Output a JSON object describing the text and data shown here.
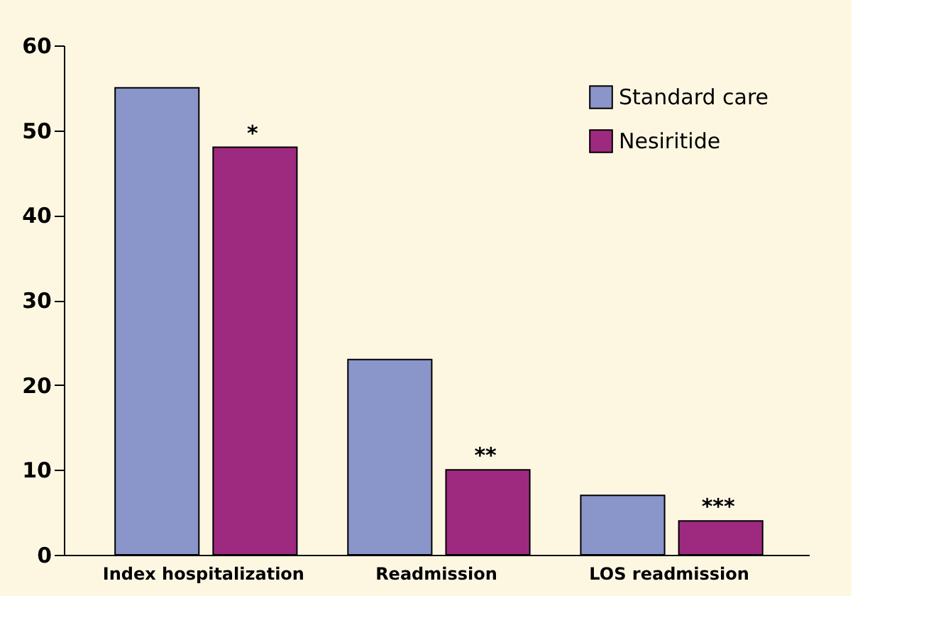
{
  "chart_data": {
    "type": "bar",
    "categories": [
      "Index hospitalization",
      "Readmission",
      "LOS readmission"
    ],
    "series": [
      {
        "name": "Standard care",
        "color": "#8a95c9",
        "values": [
          55,
          23,
          7
        ]
      },
      {
        "name": "Nesiritide",
        "color": "#9e2a80",
        "values": [
          48,
          10,
          4
        ]
      }
    ],
    "ylim": [
      0,
      60
    ],
    "yticks": [
      0,
      10,
      20,
      30,
      40,
      50,
      60
    ],
    "grid": false,
    "legend": "top right",
    "annotations": [
      {
        "text": "*",
        "x": "Index hospitalization",
        "y": 48
      },
      {
        "text": "**",
        "x": "Readmission",
        "y": 10
      },
      {
        "text": "***",
        "x": "LOS readmission",
        "y": 4
      }
    ]
  }
}
